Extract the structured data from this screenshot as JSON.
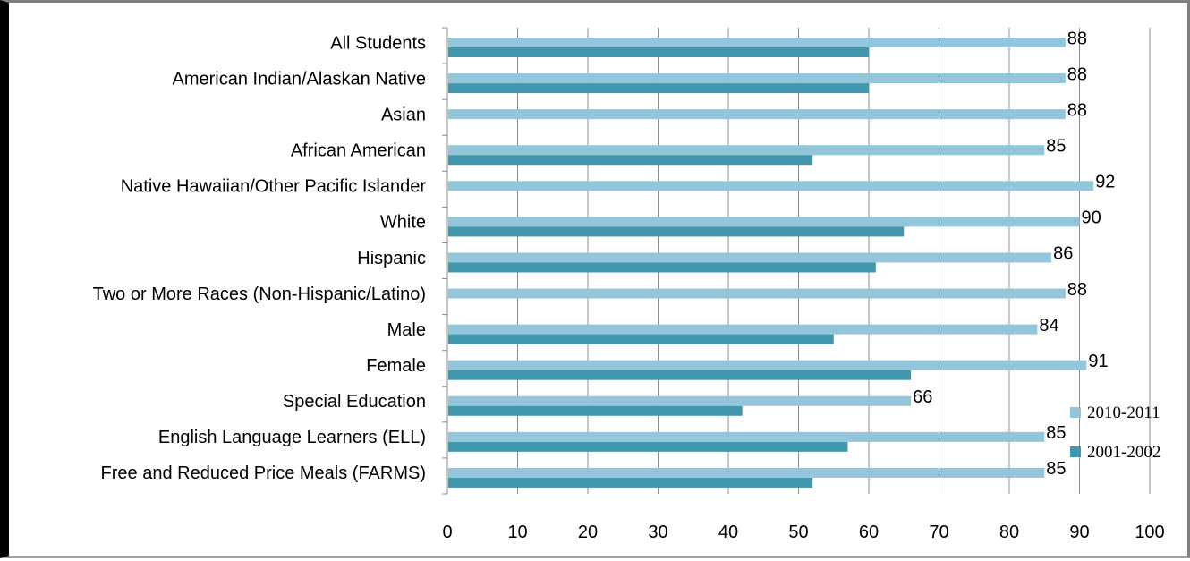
{
  "chart_data": {
    "type": "bar",
    "orientation": "horizontal",
    "categories": [
      "All Students",
      "American Indian/Alaskan Native",
      "Asian",
      "African American",
      "Native Hawaiian/Other Pacific Islander",
      "White",
      "Hispanic",
      "Two or More Races (Non-Hispanic/Latino)",
      "Male",
      "Female",
      "Special Education",
      "English Language Learners (ELL)",
      "Free and Reduced Price Meals (FARMS)"
    ],
    "series": [
      {
        "name": "2010-2011",
        "color": "#93c6da",
        "values": [
          88,
          88,
          88,
          85,
          92,
          90,
          86,
          88,
          84,
          91,
          66,
          85,
          85
        ],
        "labels": [
          "88",
          "88",
          "88",
          "85",
          "92",
          "90",
          "86",
          "88",
          "84",
          "91",
          "66",
          "85",
          "85"
        ]
      },
      {
        "name": "2001-2002",
        "color": "#4197ad",
        "values": [
          60,
          60,
          null,
          52,
          null,
          65,
          61,
          null,
          55,
          66,
          42,
          57,
          52
        ]
      }
    ],
    "xlim": [
      0,
      100
    ],
    "x_ticks": [
      "0",
      "10",
      "20",
      "30",
      "40",
      "50",
      "60",
      "70",
      "80",
      "90",
      "100"
    ],
    "grid": "vertical major gridlines",
    "legend_position": "right"
  }
}
